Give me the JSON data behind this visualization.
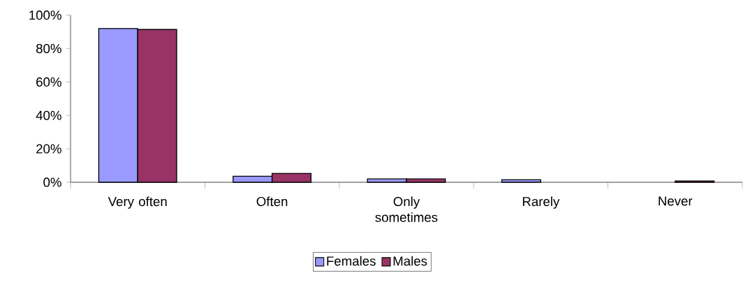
{
  "chart_data": {
    "type": "bar",
    "categories": [
      "Very often",
      "Often",
      "Only sometimes",
      "Rarely",
      "Never"
    ],
    "series": [
      {
        "name": "Females",
        "color": "#9999ff",
        "values": [
          92,
          3.6,
          2,
          1.5,
          0
        ]
      },
      {
        "name": "Males",
        "color": "#993366",
        "values": [
          91.4,
          5.3,
          2,
          0,
          0.8
        ]
      }
    ],
    "ylim": [
      0,
      100
    ],
    "yticks": [
      {
        "value": 0,
        "label": "0%"
      },
      {
        "value": 20,
        "label": "20%"
      },
      {
        "value": 40,
        "label": "40%"
      },
      {
        "value": 60,
        "label": "60%"
      },
      {
        "value": 80,
        "label": "80%"
      },
      {
        "value": 100,
        "label": "100%"
      }
    ],
    "grid": false,
    "legend": "bottom"
  }
}
